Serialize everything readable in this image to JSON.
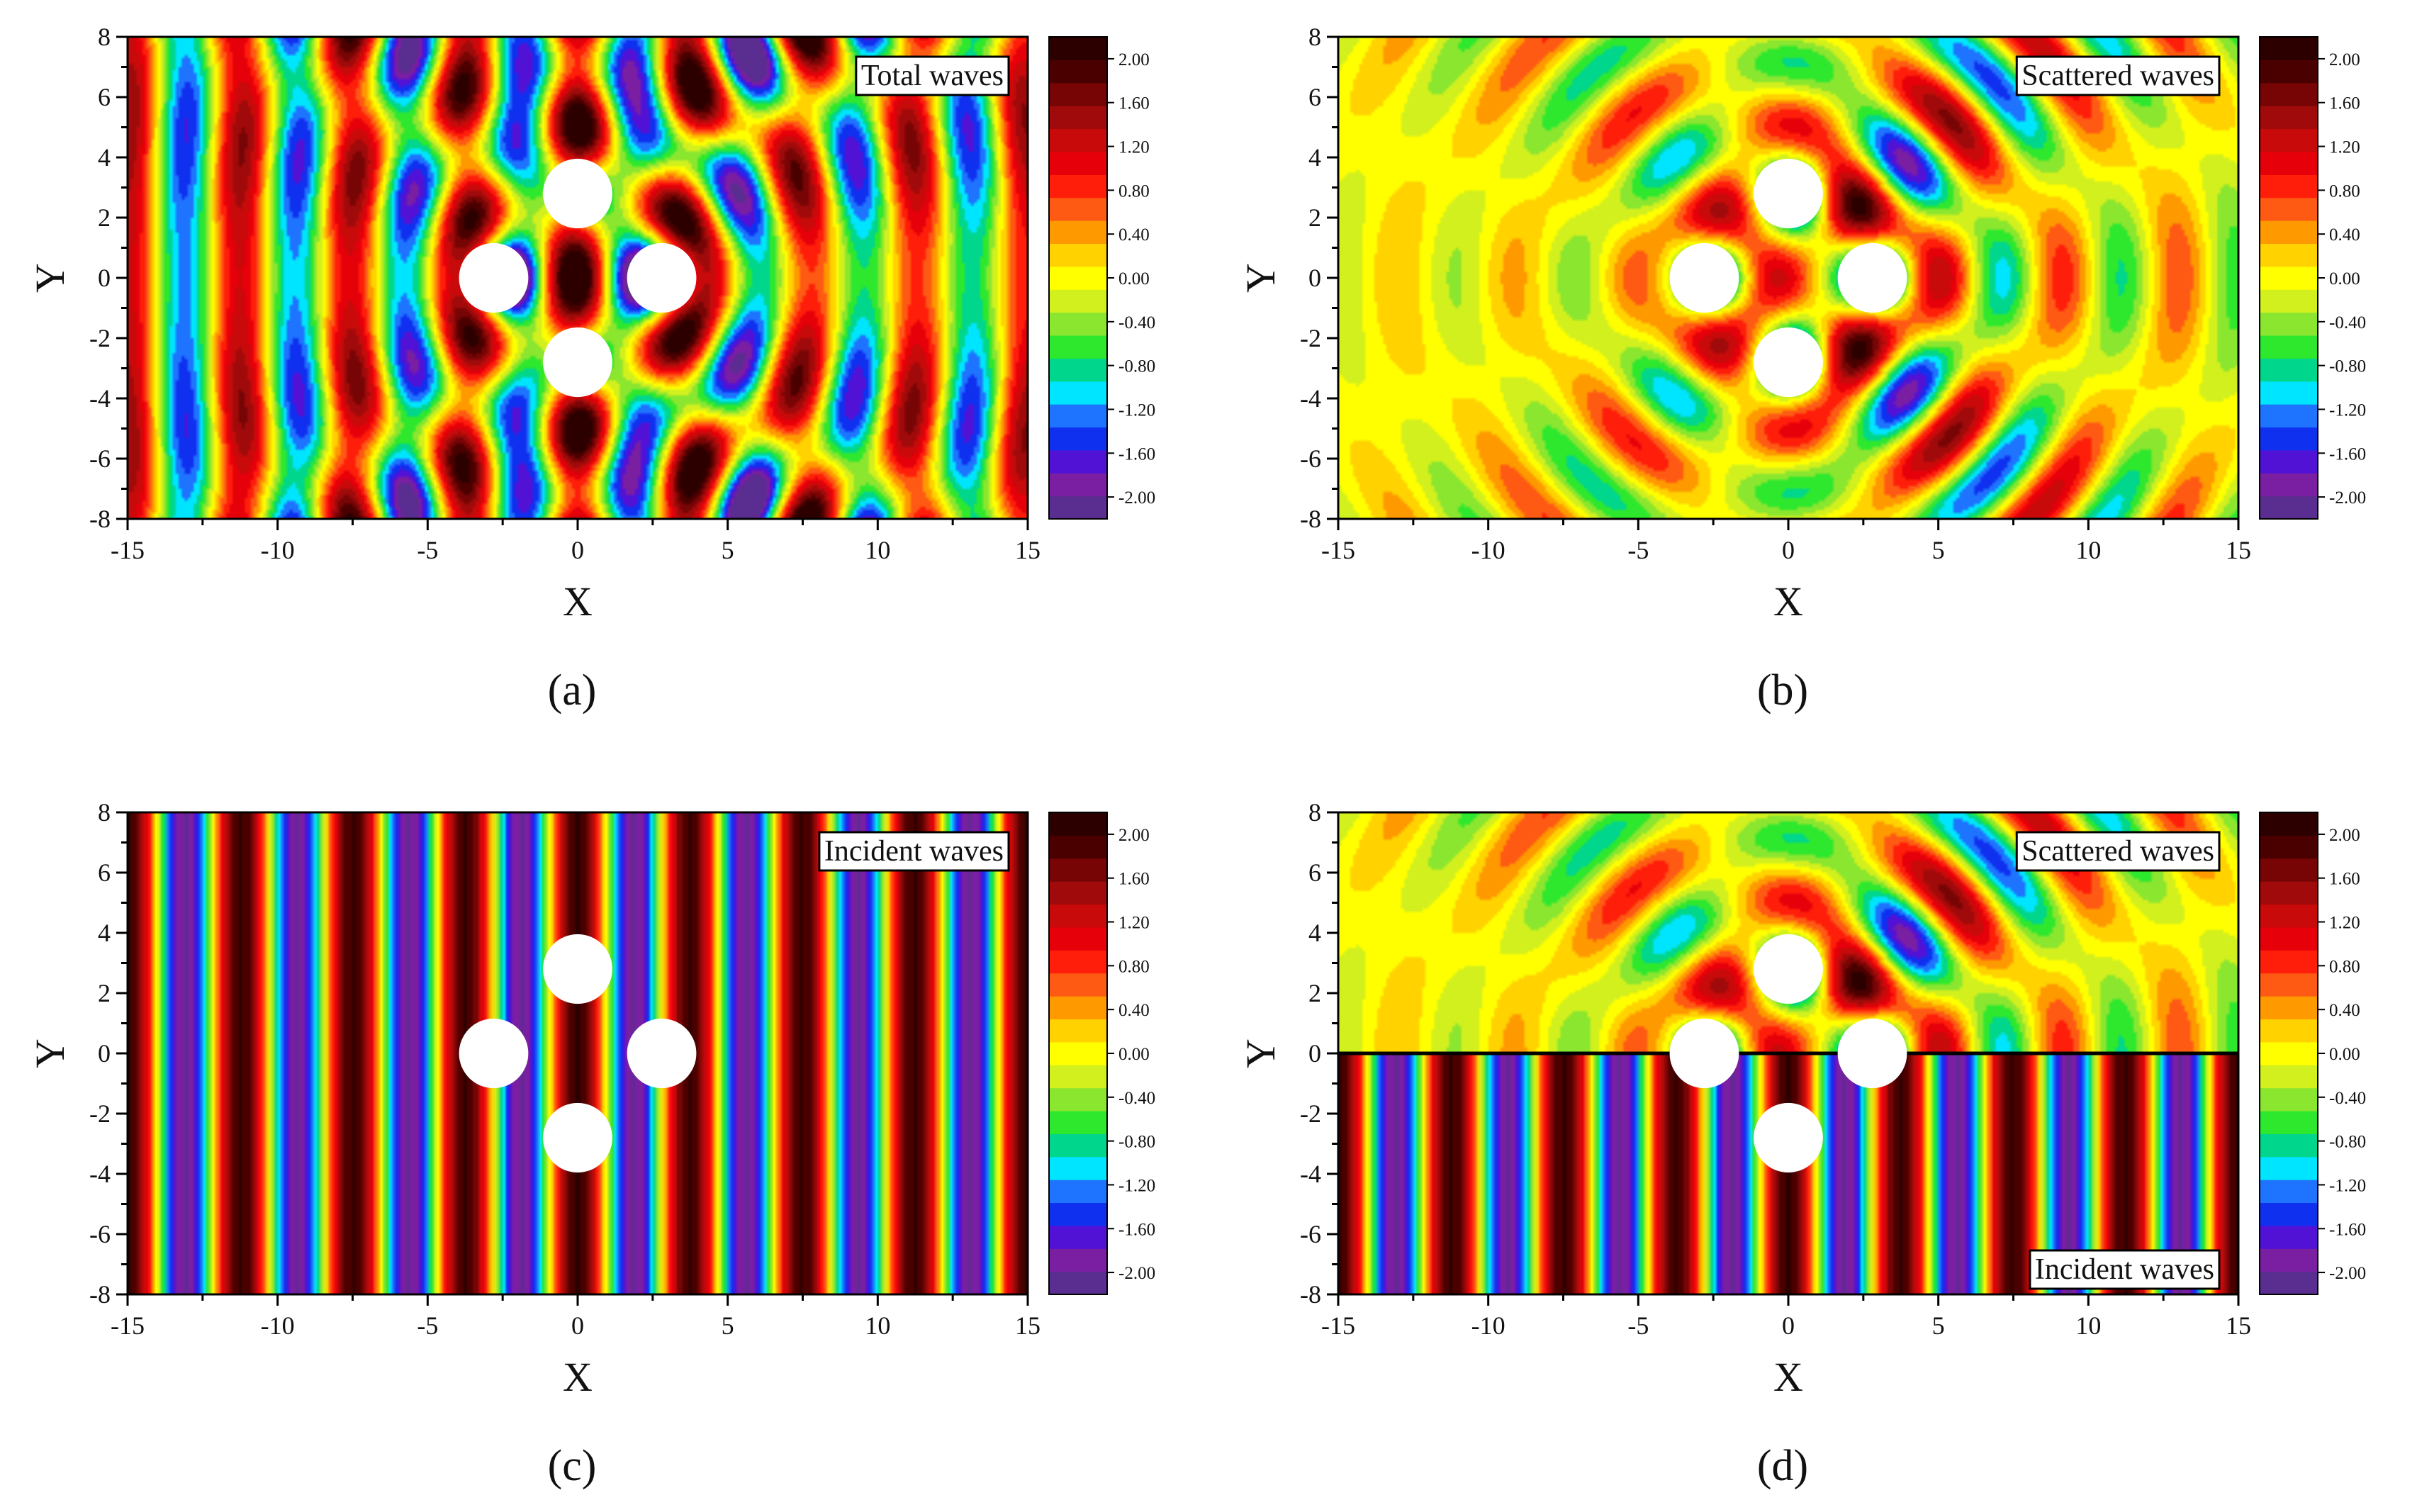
{
  "figure": {
    "panels": [
      {
        "tag": "(a)",
        "label": "Total waves",
        "label_position": "top-right",
        "field": "total"
      },
      {
        "tag": "(b)",
        "label": "Scattered waves",
        "label_position": "top-right",
        "field": "scattered"
      },
      {
        "tag": "(c)",
        "label": "Incident waves",
        "label_position": "top-right",
        "field": "incident"
      },
      {
        "tag": "(d)",
        "label": "Scattered waves",
        "label_position": "top-right",
        "label_secondary": "Incident waves",
        "label_secondary_position": "bottom-right",
        "field": "split"
      }
    ]
  },
  "chart_data": {
    "type": "heatmap",
    "xlabel": "X",
    "ylabel": "Y",
    "xlim": [
      -15,
      15
    ],
    "ylim": [
      -8,
      8
    ],
    "x_ticks": [
      "-15",
      "-10",
      "-5",
      "0",
      "5",
      "10",
      "15"
    ],
    "y_ticks": [
      "-8",
      "-6",
      "-4",
      "-2",
      "0",
      "2",
      "4",
      "6",
      "8"
    ],
    "colorbar": {
      "range": [
        -2.2,
        2.2
      ],
      "tick_labels": [
        "2.00",
        "1.60",
        "1.20",
        "0.80",
        "0.40",
        "0.00",
        "-0.40",
        "-0.80",
        "-1.20",
        "-1.60",
        "-2.00"
      ],
      "colors": [
        "#5a2d91",
        "#7a1fa2",
        "#5212d6",
        "#1030f0",
        "#1e73ff",
        "#00e5ff",
        "#00d68c",
        "#2ee82e",
        "#8ae62e",
        "#d2f01e",
        "#ffff00",
        "#ffd200",
        "#ff9900",
        "#ff5a14",
        "#ff1e0a",
        "#e6000a",
        "#c80a0a",
        "#a00a0a",
        "#780505",
        "#4b0000",
        "#2d0000"
      ]
    },
    "scatterers": [
      {
        "x": 0,
        "y": 2.8
      },
      {
        "x": -2.8,
        "y": 0
      },
      {
        "x": 2.8,
        "y": 0
      },
      {
        "x": 0,
        "y": -2.8
      }
    ],
    "scatterer_radius": 1.1,
    "wave_number": 1.68
  }
}
